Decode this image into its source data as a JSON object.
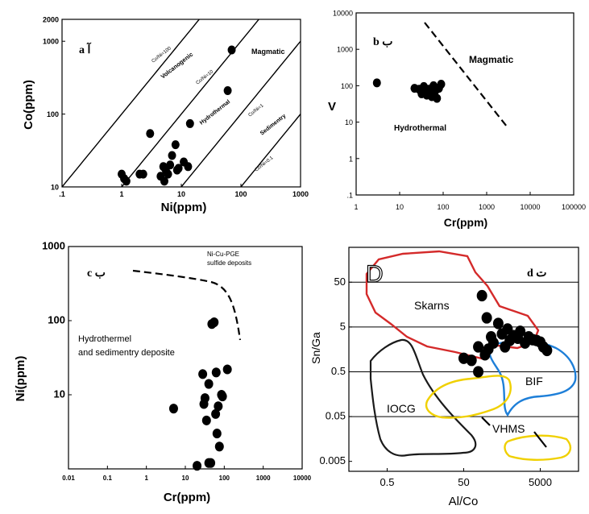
{
  "panels": {
    "a": {
      "badge": "a  آ",
      "xlabel": "Ni(ppm)",
      "ylabel": "Co(ppm)",
      "xticks": [
        ".1",
        "1",
        "10",
        "100",
        "1000"
      ],
      "yticks": [
        "2000",
        "1000",
        "100",
        "10"
      ],
      "line_labels": [
        "Co/Ni=100",
        "Co/Ni=10",
        "Co/Ni=1",
        "Co/Ni=0.1"
      ],
      "fields": {
        "volcanogenic": "Volcanogenic",
        "magmatic": "Magmatic",
        "hydrothermal": "Hydrothermal",
        "sedimentary": "Sedimentry"
      }
    },
    "b": {
      "badge": "b ب",
      "xlabel": "Cr(ppm)",
      "ylabel": "V",
      "xticks": [
        "1",
        "10",
        "100",
        "1000",
        "10000",
        "100000"
      ],
      "yticks": [
        "10000",
        "1000",
        "100",
        "10",
        "1",
        ".1"
      ],
      "fields": {
        "magmatic": "Magmatic",
        "hydrothermal": "Hydrothermal"
      }
    },
    "c": {
      "badge": "c ب",
      "xlabel": "Cr(ppm)",
      "ylabel": "Ni(ppm)",
      "xticks": [
        "0.01",
        "0.1",
        "1",
        "10",
        "100",
        "1000",
        "10000"
      ],
      "yticks": [
        "1000",
        "100",
        "10"
      ],
      "field_top_line1": "Ni-Cu-PGE",
      "field_top_line2": "sulfide deposits",
      "field_main_line1": "Hydrothermel",
      "field_main_line2": "and sedimentry deposite"
    },
    "d": {
      "badge": "d ت",
      "letter": "D",
      "xlabel": "Al/Co",
      "ylabel": "Sn/Ga",
      "xticks": [
        "0.5",
        "50",
        "5000"
      ],
      "yticks": [
        "50",
        "5",
        "0.5",
        "0.05",
        "0.005"
      ],
      "fields": {
        "skarns": "Skarns",
        "bif": "BIF",
        "iocg": "IOCG",
        "vhms": "VHMS"
      }
    }
  },
  "chart_data": [
    {
      "type": "scatter",
      "panel": "a",
      "xlabel": "Ni(ppm)",
      "ylabel": "Co(ppm)",
      "xlim": [
        0.1,
        1000
      ],
      "ylim": [
        10,
        2000
      ],
      "xscale": "log",
      "yscale": "log",
      "points": [
        [
          1.0,
          15
        ],
        [
          1.1,
          13
        ],
        [
          1.2,
          12
        ],
        [
          2.0,
          15
        ],
        [
          2.3,
          15
        ],
        [
          3.0,
          54
        ],
        [
          4.5,
          14
        ],
        [
          5.0,
          19
        ],
        [
          5.2,
          12
        ],
        [
          5.5,
          17
        ],
        [
          6.0,
          15
        ],
        [
          6.5,
          20
        ],
        [
          7.0,
          27
        ],
        [
          8.0,
          38
        ],
        [
          8.5,
          17
        ],
        [
          9.0,
          18
        ],
        [
          11,
          22
        ],
        [
          13,
          19
        ],
        [
          14,
          74
        ],
        [
          60,
          210
        ],
        [
          70,
          760
        ]
      ]
    },
    {
      "type": "scatter",
      "panel": "b",
      "xlabel": "Cr(ppm)",
      "ylabel": "V",
      "xlim": [
        1,
        100000
      ],
      "ylim": [
        0.1,
        10000
      ],
      "xscale": "log",
      "yscale": "log",
      "points": [
        [
          3,
          120
        ],
        [
          22,
          85
        ],
        [
          28,
          80
        ],
        [
          32,
          60
        ],
        [
          36,
          95
        ],
        [
          38,
          70
        ],
        [
          42,
          55
        ],
        [
          47,
          80
        ],
        [
          52,
          65
        ],
        [
          55,
          50
        ],
        [
          60,
          100
        ],
        [
          65,
          70
        ],
        [
          72,
          45
        ],
        [
          80,
          85
        ],
        [
          90,
          110
        ]
      ]
    },
    {
      "type": "scatter",
      "panel": "c",
      "xlabel": "Cr(ppm)",
      "ylabel": "Ni(ppm)",
      "xlim": [
        0.01,
        10000
      ],
      "ylim": [
        1,
        1000
      ],
      "xscale": "log",
      "yscale": "log",
      "points": [
        [
          5,
          6.5
        ],
        [
          20,
          1.1
        ],
        [
          28,
          19
        ],
        [
          30,
          7.5
        ],
        [
          32,
          9
        ],
        [
          35,
          4.5
        ],
        [
          40,
          14
        ],
        [
          45,
          1.2
        ],
        [
          48,
          90
        ],
        [
          55,
          95
        ],
        [
          60,
          5.5
        ],
        [
          62,
          20
        ],
        [
          65,
          3
        ],
        [
          70,
          7
        ],
        [
          75,
          2
        ],
        [
          85,
          10
        ],
        [
          90,
          9.5
        ],
        [
          120,
          22
        ],
        [
          40,
          1.2
        ]
      ]
    },
    {
      "type": "scatter",
      "panel": "d",
      "xlabel": "Al/Co",
      "ylabel": "Sn/Ga",
      "xlim": [
        0.05,
        50000
      ],
      "ylim": [
        0.003,
        300
      ],
      "xscale": "log",
      "yscale": "log",
      "points": [
        [
          150,
          25
        ],
        [
          200,
          8
        ],
        [
          260,
          3
        ],
        [
          120,
          1.8
        ],
        [
          80,
          0.9
        ],
        [
          50,
          1.0
        ],
        [
          180,
          1.2
        ],
        [
          220,
          1.6
        ],
        [
          300,
          2.2
        ],
        [
          400,
          6
        ],
        [
          500,
          3.5
        ],
        [
          600,
          1.8
        ],
        [
          700,
          4.5
        ],
        [
          800,
          2.5
        ],
        [
          1000,
          3.2
        ],
        [
          1300,
          2.8
        ],
        [
          1500,
          4
        ],
        [
          2000,
          2.2
        ],
        [
          2500,
          3
        ],
        [
          3200,
          2.6
        ],
        [
          4000,
          2.5
        ],
        [
          5000,
          2.3
        ],
        [
          6000,
          1.8
        ],
        [
          7500,
          1.5
        ],
        [
          120,
          0.5
        ]
      ]
    }
  ]
}
